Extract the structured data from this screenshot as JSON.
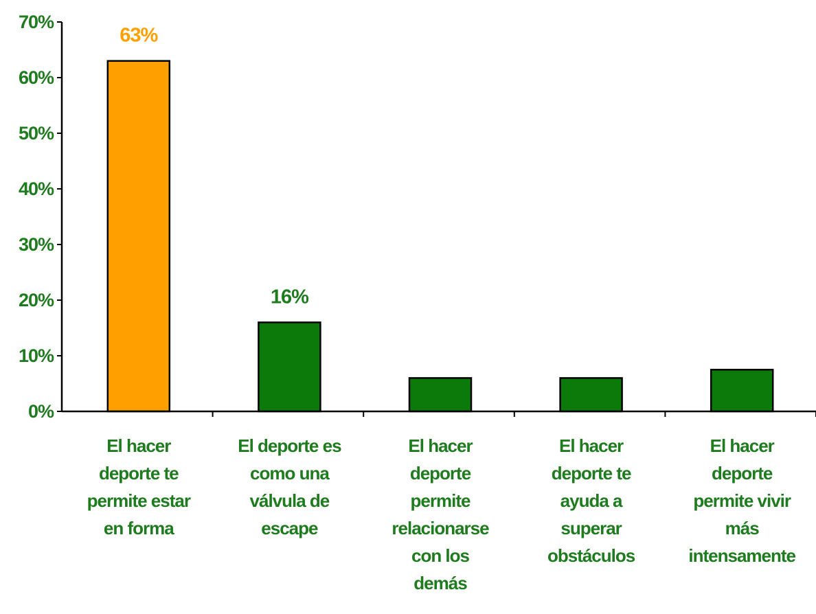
{
  "colors": {
    "text": "#1E7B1E",
    "bar_default": "#0B7A0B",
    "bar_highlight": "#FFA000",
    "highlight_label": "#FFA000",
    "axis": "#000000"
  },
  "chart_data": {
    "type": "bar",
    "title": "",
    "xlabel": "",
    "ylabel": "",
    "ylim": [
      0,
      70
    ],
    "ytick_step": 10,
    "y_tick_labels": [
      "0%",
      "10%",
      "20%",
      "30%",
      "40%",
      "50%",
      "60%",
      "70%"
    ],
    "grid": false,
    "categories": [
      [
        "El hacer",
        "deporte te",
        "permite estar",
        "en forma"
      ],
      [
        "El deporte es",
        "como una",
        "válvula de",
        "escape"
      ],
      [
        "El hacer",
        "deporte",
        "permite",
        "relacionarse",
        "con los",
        "demás"
      ],
      [
        "El hacer",
        "deporte te",
        "ayuda a",
        "superar",
        "obstáculos"
      ],
      [
        "El hacer",
        "deporte",
        "permite vivir",
        "más",
        "intensamente"
      ]
    ],
    "values": [
      63,
      16,
      6,
      6,
      7.5
    ],
    "data_labels": [
      "63%",
      "16%",
      "",
      "",
      ""
    ],
    "highlight_index": 0
  }
}
